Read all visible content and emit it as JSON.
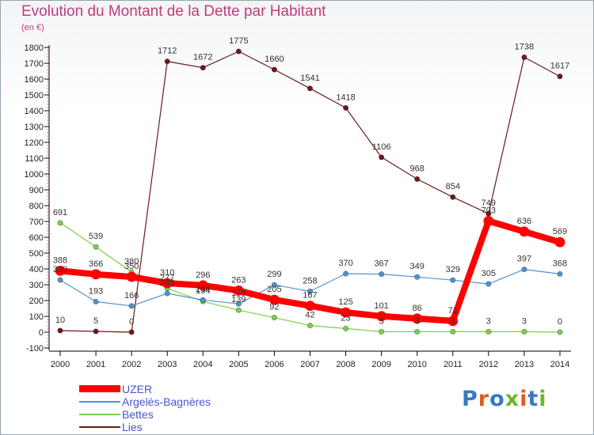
{
  "header": {
    "title": "Evolution du Montant de la Dette par Habitant",
    "subtitle": "(en €)"
  },
  "logo": {
    "text": "Proxiti",
    "colors": [
      "#3a78c4",
      "#e25a1c",
      "#3a78c4",
      "#6bb82e",
      "#e25a1c",
      "#3a78c4",
      "#6bb82e"
    ]
  },
  "chart_data": {
    "type": "line",
    "title": "Evolution du Montant de la Dette par Habitant",
    "subtitle": "(en €)",
    "xlabel": "",
    "ylabel": "",
    "x": [
      "2000",
      "2001",
      "2002",
      "2003",
      "2004",
      "2005",
      "2006",
      "2007",
      "2008",
      "2009",
      "2010",
      "2011",
      "2012",
      "2013",
      "2014"
    ],
    "ylim": [
      -100,
      1800
    ],
    "yticks": [
      -100,
      0,
      100,
      200,
      300,
      400,
      500,
      600,
      700,
      800,
      900,
      1000,
      1100,
      1200,
      1300,
      1400,
      1500,
      1600,
      1700,
      1800
    ],
    "grid": false,
    "legend": "bottom-left",
    "series": [
      {
        "name": "UZER",
        "color": "#ff0000",
        "values": [
          388,
          366,
          350,
          310,
          296,
          263,
          205,
          167,
          125,
          101,
          86,
          71,
          703,
          636,
          569
        ]
      },
      {
        "name": "Argelès-Bagnères",
        "color": "#4f93d0",
        "values": [
          330,
          193,
          166,
          245,
          204,
          179,
          299,
          258,
          370,
          367,
          349,
          329,
          305,
          397,
          368
        ]
      },
      {
        "name": "Bettes",
        "color": "#7ccf4a",
        "values": [
          691,
          539,
          380,
          277,
          194,
          139,
          92,
          42,
          23,
          3,
          3,
          3,
          3,
          3,
          0
        ]
      },
      {
        "name": "Lies",
        "color": "#6b1a1a",
        "values": [
          10,
          5,
          0,
          1712,
          1672,
          1775,
          1660,
          1541,
          1418,
          1106,
          968,
          854,
          749,
          1738,
          1617
        ]
      }
    ]
  }
}
